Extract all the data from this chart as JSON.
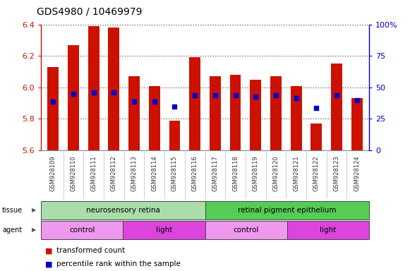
{
  "title": "GDS4980 / 10469979",
  "samples": [
    "GSM928109",
    "GSM928110",
    "GSM928111",
    "GSM928112",
    "GSM928113",
    "GSM928114",
    "GSM928115",
    "GSM928116",
    "GSM928117",
    "GSM928118",
    "GSM928119",
    "GSM928120",
    "GSM928121",
    "GSM928122",
    "GSM928123",
    "GSM928124"
  ],
  "bar_heights": [
    6.13,
    6.27,
    6.39,
    6.38,
    6.07,
    6.01,
    5.79,
    6.19,
    6.07,
    6.08,
    6.05,
    6.07,
    6.01,
    5.77,
    6.15,
    5.93
  ],
  "blue_dot_y": [
    5.91,
    5.96,
    5.97,
    5.97,
    5.91,
    5.91,
    5.88,
    5.95,
    5.95,
    5.95,
    5.94,
    5.95,
    5.93,
    5.87,
    5.95,
    5.92
  ],
  "ylim_left": [
    5.6,
    6.4
  ],
  "ylim_right": [
    0,
    100
  ],
  "y_ticks_left": [
    5.6,
    5.8,
    6.0,
    6.2,
    6.4
  ],
  "y_ticks_right": [
    0,
    25,
    50,
    75,
    100
  ],
  "bar_color": "#cc1100",
  "dot_color": "#0000cc",
  "bar_bottom": 5.6,
  "tissue_groups": [
    {
      "label": "neurosensory retina",
      "start": 0,
      "end": 7,
      "color": "#aaddaa"
    },
    {
      "label": "retinal pigment epithelium",
      "start": 8,
      "end": 15,
      "color": "#55cc55"
    }
  ],
  "agent_groups": [
    {
      "label": "control",
      "start": 0,
      "end": 3,
      "color": "#ee99ee"
    },
    {
      "label": "light",
      "start": 4,
      "end": 7,
      "color": "#dd44dd"
    },
    {
      "label": "control",
      "start": 8,
      "end": 11,
      "color": "#ee99ee"
    },
    {
      "label": "light",
      "start": 12,
      "end": 15,
      "color": "#dd44dd"
    }
  ],
  "legend_items": [
    {
      "label": "transformed count",
      "color": "#cc1100"
    },
    {
      "label": "percentile rank within the sample",
      "color": "#0000cc"
    }
  ],
  "title_fontsize": 10,
  "bar_width": 0.55,
  "background_color": "#ffffff",
  "left_tick_color": "#cc1100",
  "right_tick_color": "#0000cc",
  "xticklabel_bg": "#cccccc"
}
